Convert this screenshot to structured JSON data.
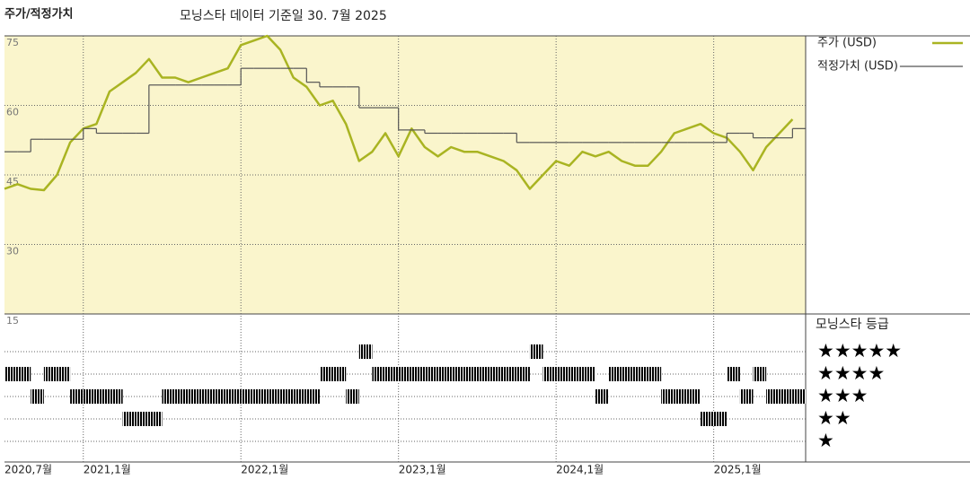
{
  "chart_data": {
    "type": "line",
    "title": "주가/적정가치",
    "subtitle": "모닝스타 데이터 기준일 30. 7월 2025",
    "x": [
      "2020-07",
      "2020-08",
      "2020-09",
      "2020-10",
      "2020-11",
      "2020-12",
      "2021-01",
      "2021-02",
      "2021-03",
      "2021-04",
      "2021-05",
      "2021-06",
      "2021-07",
      "2021-08",
      "2021-09",
      "2021-10",
      "2021-11",
      "2021-12",
      "2022-01",
      "2022-02",
      "2022-03",
      "2022-04",
      "2022-05",
      "2022-06",
      "2022-07",
      "2022-08",
      "2022-09",
      "2022-10",
      "2022-11",
      "2022-12",
      "2023-01",
      "2023-02",
      "2023-03",
      "2023-04",
      "2023-05",
      "2023-06",
      "2023-07",
      "2023-08",
      "2023-09",
      "2023-10",
      "2023-11",
      "2023-12",
      "2024-01",
      "2024-02",
      "2024-03",
      "2024-04",
      "2024-05",
      "2024-06",
      "2024-07",
      "2024-08",
      "2024-09",
      "2024-10",
      "2024-11",
      "2024-12",
      "2025-01",
      "2025-02",
      "2025-03",
      "2025-04",
      "2025-05",
      "2025-06",
      "2025-07"
    ],
    "xlim": [
      "2020-07",
      "2025-08"
    ],
    "xticks": [
      {
        "value": "2020-07",
        "label": "2020,7월"
      },
      {
        "value": "2021-01",
        "label": "2021,1월"
      },
      {
        "value": "2022-01",
        "label": "2022,1월"
      },
      {
        "value": "2023-01",
        "label": "2023,1월"
      },
      {
        "value": "2024-01",
        "label": "2024,1월"
      },
      {
        "value": "2025-01",
        "label": "2025,1월"
      }
    ],
    "ylim": [
      15,
      75
    ],
    "yticks": [
      15,
      30,
      45,
      60,
      75
    ],
    "grid": true,
    "series": [
      {
        "name": "주가 (USD)",
        "color": "#a9b422",
        "step": false,
        "values": [
          42,
          43,
          42,
          41.7,
          45,
          52,
          55,
          56,
          63,
          65,
          67,
          70,
          66,
          66,
          65,
          66,
          67,
          68,
          73,
          74,
          75,
          72,
          66,
          64,
          60,
          61,
          56,
          48,
          50,
          54,
          49,
          55,
          51,
          49,
          51,
          50,
          50,
          49,
          48,
          46,
          42,
          45,
          48,
          47,
          50,
          49,
          50,
          48,
          47,
          47,
          50,
          54,
          55,
          56,
          54,
          53,
          50,
          46,
          51,
          54,
          57
        ]
      },
      {
        "name": "적정가치 (USD)",
        "color": "#555555",
        "step": true,
        "values": [
          50,
          50,
          52.7,
          52.7,
          52.7,
          52.7,
          55,
          54,
          54,
          54,
          54,
          64.4,
          64.4,
          64.4,
          64.4,
          64.4,
          64.4,
          64.4,
          68,
          68,
          68,
          68,
          68,
          65,
          64,
          64,
          64,
          59.5,
          59.5,
          59.5,
          54.7,
          54.7,
          54,
          54,
          54,
          54,
          54,
          54,
          54,
          52,
          52,
          52,
          52,
          52,
          52,
          52,
          52,
          52,
          52,
          52,
          52,
          52,
          52,
          52,
          52,
          54,
          54,
          53,
          53,
          53,
          55
        ]
      }
    ],
    "ratings": {
      "title": "모닝스타 등급",
      "labels": [
        "★",
        "★★",
        "★★★",
        "★★★★",
        "★★★★★"
      ],
      "colors": [
        "#222222",
        "#222222",
        "#222222",
        "#222222",
        "#3d8a6a"
      ],
      "values": [
        4,
        4,
        3,
        4,
        4,
        3,
        3,
        3,
        3,
        2,
        2,
        2,
        3,
        3,
        3,
        3,
        3,
        3,
        3,
        3,
        3,
        3,
        3,
        3,
        4,
        4,
        3,
        5,
        4,
        4,
        4,
        4,
        4,
        4,
        4,
        4,
        4,
        4,
        4,
        4,
        5,
        4,
        4,
        4,
        4,
        3,
        4,
        4,
        4,
        4,
        3,
        3,
        3,
        2,
        2,
        4,
        3,
        4,
        3,
        3,
        3
      ]
    }
  }
}
